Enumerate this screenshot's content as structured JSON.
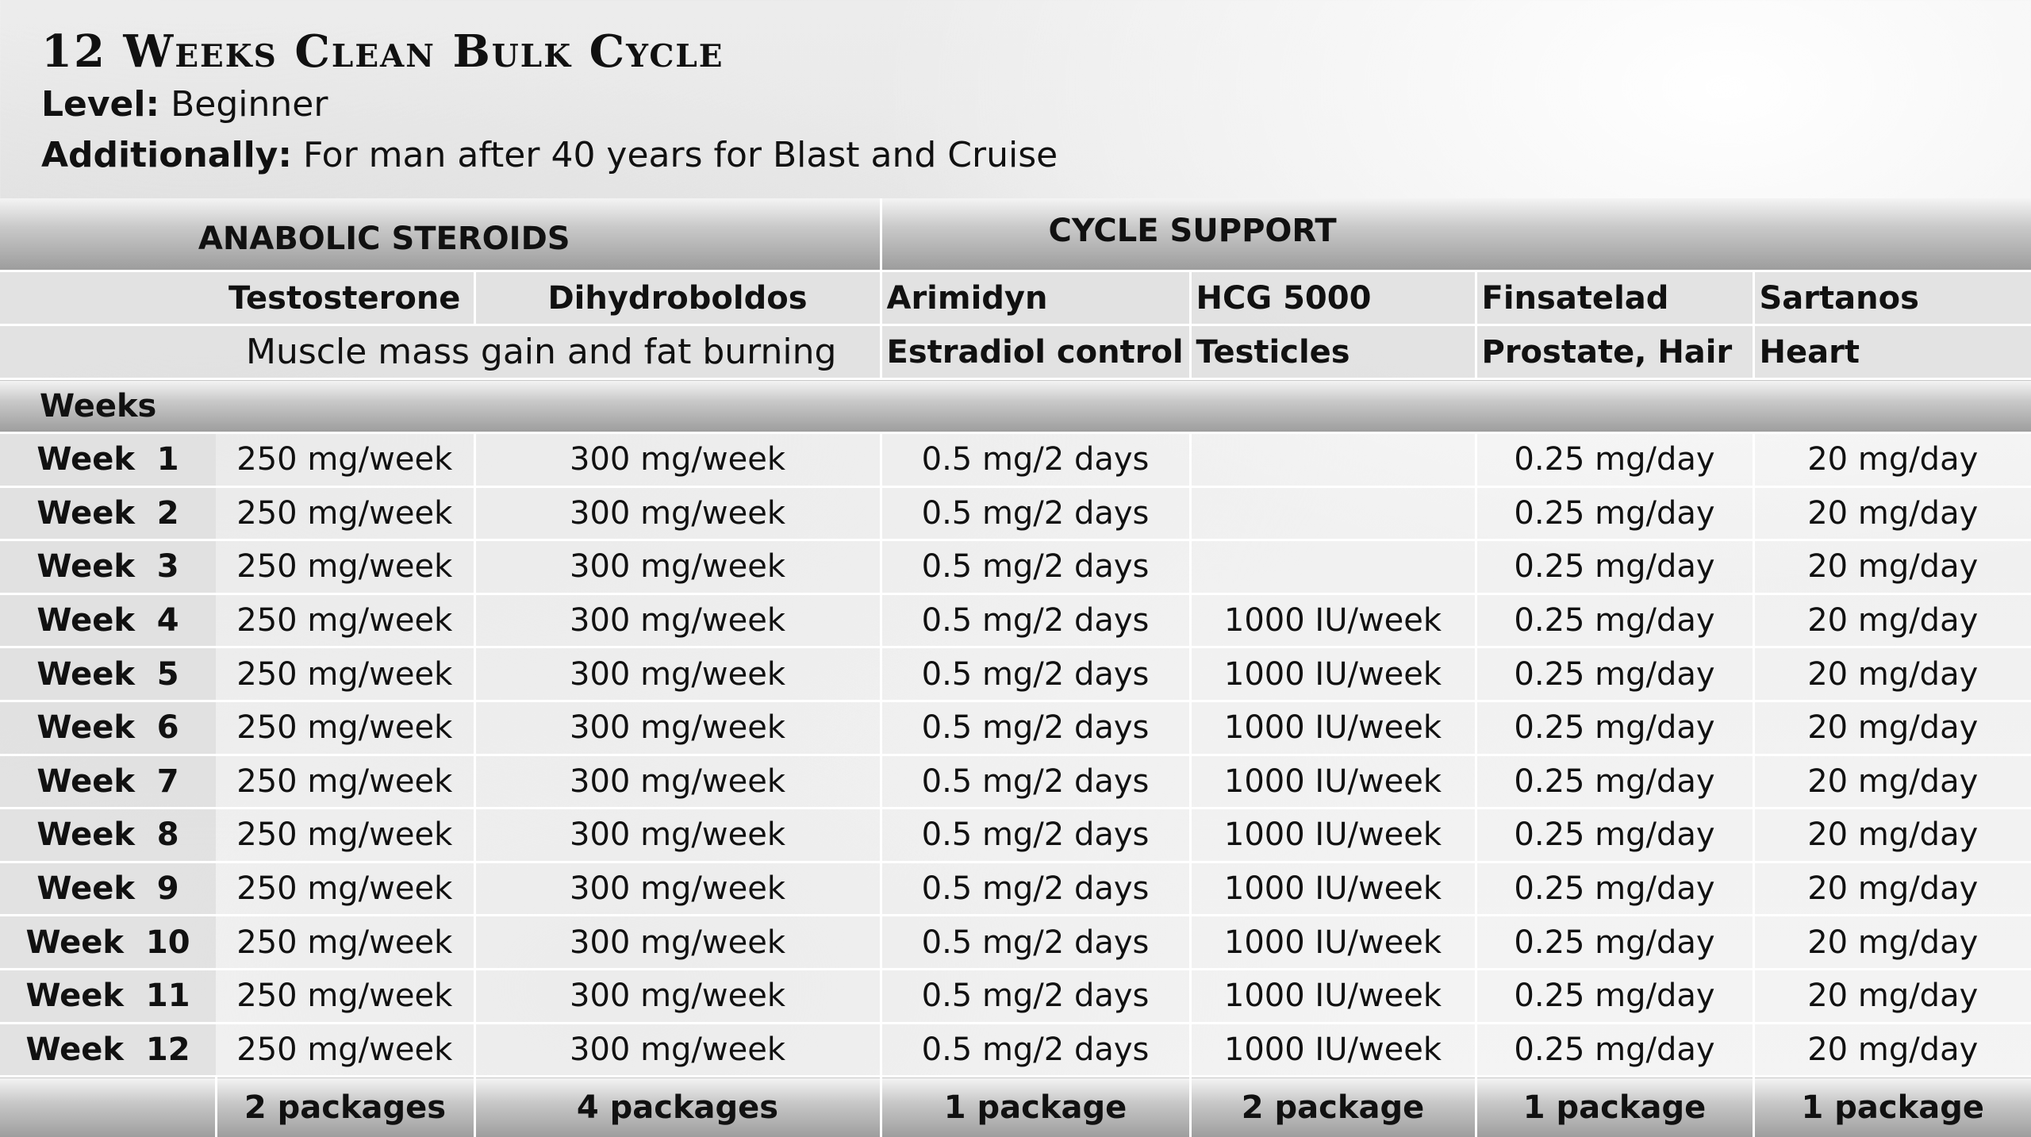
{
  "title": "12 Weeks Clean Bulk Cycle",
  "level": {
    "label": "Level:",
    "value": "Beginner"
  },
  "additionally": {
    "label": "Additionally:",
    "value": "For man after 40 years for Blast and Cruise"
  },
  "groups": {
    "anabolic": "ANABOLIC STEROIDS",
    "support": "CYCLE SUPPORT"
  },
  "compounds": [
    {
      "name": "Testosterone"
    },
    {
      "name": "Dihydroboldos"
    },
    {
      "name": "Arimidyn",
      "purpose": "Estradiol control"
    },
    {
      "name": "HCG 5000",
      "purpose": "Testicles"
    },
    {
      "name": "Finsatelad",
      "purpose": "Prostate, Hair"
    },
    {
      "name": "Sartanos",
      "purpose": "Heart"
    }
  ],
  "anabolic_purpose": "Muscle mass gain and fat burning",
  "weeks_header": "Weeks",
  "rows": [
    {
      "week": "Week  1",
      "doses": [
        "250 mg/week",
        "300 mg/week",
        "0.5 mg/2 days",
        "",
        "0.25 mg/day",
        "20 mg/day"
      ]
    },
    {
      "week": "Week  2",
      "doses": [
        "250 mg/week",
        "300 mg/week",
        "0.5 mg/2 days",
        "",
        "0.25 mg/day",
        "20 mg/day"
      ]
    },
    {
      "week": "Week  3",
      "doses": [
        "250 mg/week",
        "300 mg/week",
        "0.5 mg/2 days",
        "",
        "0.25 mg/day",
        "20 mg/day"
      ]
    },
    {
      "week": "Week  4",
      "doses": [
        "250 mg/week",
        "300 mg/week",
        "0.5 mg/2 days",
        "1000 IU/week",
        "0.25 mg/day",
        "20 mg/day"
      ]
    },
    {
      "week": "Week  5",
      "doses": [
        "250 mg/week",
        "300 mg/week",
        "0.5 mg/2 days",
        "1000 IU/week",
        "0.25 mg/day",
        "20 mg/day"
      ]
    },
    {
      "week": "Week  6",
      "doses": [
        "250 mg/week",
        "300 mg/week",
        "0.5 mg/2 days",
        "1000 IU/week",
        "0.25 mg/day",
        "20 mg/day"
      ]
    },
    {
      "week": "Week  7",
      "doses": [
        "250 mg/week",
        "300 mg/week",
        "0.5 mg/2 days",
        "1000 IU/week",
        "0.25 mg/day",
        "20 mg/day"
      ]
    },
    {
      "week": "Week  8",
      "doses": [
        "250 mg/week",
        "300 mg/week",
        "0.5 mg/2 days",
        "1000 IU/week",
        "0.25 mg/day",
        "20 mg/day"
      ]
    },
    {
      "week": "Week  9",
      "doses": [
        "250 mg/week",
        "300 mg/week",
        "0.5 mg/2 days",
        "1000 IU/week",
        "0.25 mg/day",
        "20 mg/day"
      ]
    },
    {
      "week": "Week  10",
      "doses": [
        "250 mg/week",
        "300 mg/week",
        "0.5 mg/2 days",
        "1000 IU/week",
        "0.25 mg/day",
        "20 mg/day"
      ]
    },
    {
      "week": "Week  11",
      "doses": [
        "250 mg/week",
        "300 mg/week",
        "0.5 mg/2 days",
        "1000 IU/week",
        "0.25 mg/day",
        "20 mg/day"
      ]
    },
    {
      "week": "Week  12",
      "doses": [
        "250 mg/week",
        "300 mg/week",
        "0.5 mg/2 days",
        "1000 IU/week",
        "0.25 mg/day",
        "20 mg/day"
      ]
    }
  ],
  "totals": [
    "2 packages",
    "4 packages",
    "1 package",
    "2 package",
    "1 package",
    "1 package"
  ]
}
